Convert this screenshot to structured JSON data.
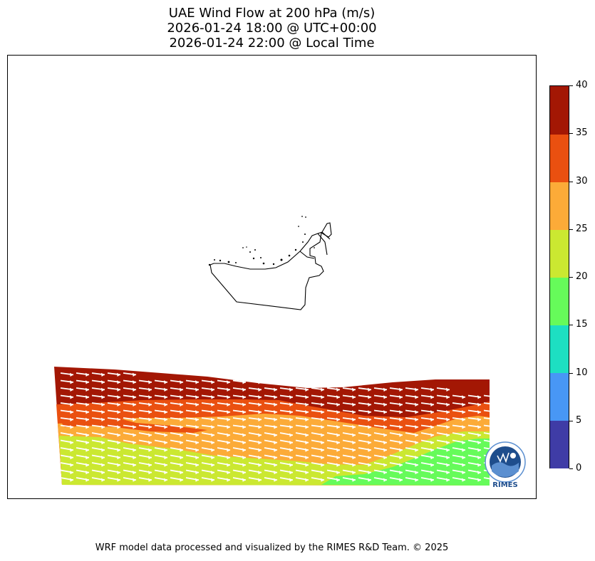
{
  "title": {
    "line1": "UAE Wind Flow at 200 hPa (m/s)",
    "line2": "2026-01-24 18:00 @ UTC+00:00",
    "line3": "2026-01-24 22:00 @ Local Time"
  },
  "footer": "WRF model data processed and visualized by the RIMES R&D Team. © 2025",
  "logo_text": "RIMES",
  "chart_data": {
    "type": "heatmap",
    "variable": "wind speed",
    "units": "m/s",
    "colorbar": {
      "levels": [
        0,
        5,
        10,
        15,
        20,
        25,
        30,
        35,
        40
      ],
      "tick_labels": [
        "0",
        "5",
        "10",
        "15",
        "20",
        "25",
        "30",
        "35",
        "40"
      ],
      "colors": [
        "#3f3ca6",
        "#4897f5",
        "#1ddfc2",
        "#66fb5a",
        "#cbe831",
        "#fcab38",
        "#ea5010",
        "#a31704"
      ]
    },
    "field_bands": [
      {
        "range": [
          35,
          40
        ],
        "color": "#a31704"
      },
      {
        "range": [
          30,
          35
        ],
        "color": "#ea5010"
      },
      {
        "range": [
          25,
          30
        ],
        "color": "#fcab38"
      },
      {
        "range": [
          20,
          25
        ],
        "color": "#cbe831"
      },
      {
        "range": [
          15,
          20
        ],
        "color": "#66fb5a"
      }
    ],
    "wind_direction": "westerly to west-northwesterly",
    "vector_color": "#ffffff"
  }
}
